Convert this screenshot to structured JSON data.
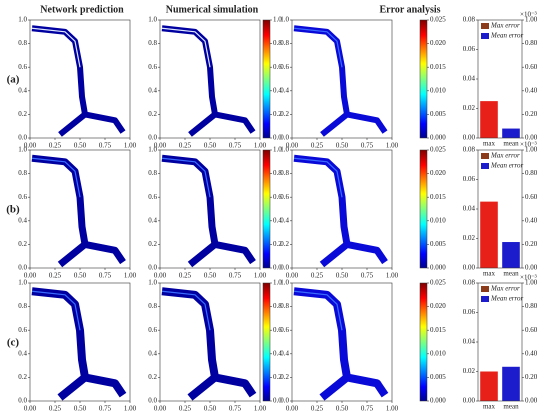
{
  "columns": [
    "Network prediction",
    "Numerical simulation",
    "Error analysis"
  ],
  "rows": [
    "(a)",
    "(b)",
    "(c)"
  ],
  "field_axes": {
    "xlim": [
      0,
      1
    ],
    "ylim": [
      0,
      1
    ],
    "xticks": [
      {
        "value": 0,
        "label": "0.00"
      },
      0.25,
      {
        "value": 0.5,
        "label": "0.50"
      },
      0.75,
      {
        "value": 1,
        "label": "1.00"
      }
    ],
    "yticks": [
      {
        "value": 0,
        "label": "0.0"
      },
      0.2,
      0.4,
      0.6,
      0.8,
      {
        "value": 1,
        "label": "1.0"
      }
    ]
  },
  "colorbars": [
    {
      "lim": [
        0,
        1
      ],
      "ticks": [
        {
          "value": 0,
          "label": "0.0"
        },
        0.2,
        0.4,
        0.6,
        0.8,
        {
          "value": 1,
          "label": "1.0"
        }
      ]
    },
    {
      "lim": [
        0,
        0.025
      ],
      "ticks": [
        {
          "value": 0,
          "label": "0.000"
        },
        0.005,
        {
          "value": 0.01,
          "label": "0.010"
        },
        0.015,
        {
          "value": 0.02,
          "label": "0.020"
        },
        0.025
      ]
    }
  ],
  "chart_data": [
    {
      "type": "bar",
      "categories": [
        "max",
        "mean"
      ],
      "series": [
        {
          "name": "Max error",
          "color": "#e8201a",
          "values": [
            0.025,
            null
          ]
        },
        {
          "name": "Mean error",
          "color": "#1c1ccc",
          "axis": "y2",
          "values": [
            null,
            0.08
          ]
        }
      ],
      "ylim": [
        0,
        0.08
      ],
      "yticks": [
        {
          "value": 0,
          "label": "0.00"
        },
        0.02,
        0.04,
        0.06,
        0.08
      ],
      "y2lim": [
        0,
        1
      ],
      "y2ticks": [
        {
          "value": 0,
          "label": "0.00"
        },
        {
          "value": 0.2,
          "label": "0.20"
        },
        {
          "value": 0.4,
          "label": "0.40"
        },
        {
          "value": 0.6,
          "label": "0.60"
        },
        {
          "value": 0.8,
          "label": "0.80"
        },
        {
          "value": 1,
          "label": "1.00"
        }
      ],
      "y2_scale": "×10⁻³",
      "legend": "upper left"
    },
    {
      "type": "bar",
      "categories": [
        "max",
        "mean"
      ],
      "series": [
        {
          "name": "Max error",
          "color": "#e8201a",
          "values": [
            0.045,
            null
          ]
        },
        {
          "name": "Mean error",
          "color": "#1c1ccc",
          "axis": "y2",
          "values": [
            null,
            0.22
          ]
        }
      ],
      "ylim": [
        0,
        0.08
      ],
      "yticks": [
        {
          "value": 0,
          "label": "0.00"
        },
        0.02,
        0.04,
        0.06,
        0.08
      ],
      "y2lim": [
        0,
        1
      ],
      "y2ticks": [
        {
          "value": 0,
          "label": "0.00"
        },
        {
          "value": 0.2,
          "label": "0.20"
        },
        {
          "value": 0.4,
          "label": "0.40"
        },
        {
          "value": 0.6,
          "label": "0.60"
        },
        {
          "value": 0.8,
          "label": "0.80"
        },
        {
          "value": 1,
          "label": "1.00"
        }
      ],
      "y2_scale": "×10⁻³",
      "legend": "upper left"
    },
    {
      "type": "bar",
      "categories": [
        "max",
        "mean"
      ],
      "series": [
        {
          "name": "Max error",
          "color": "#e8201a",
          "values": [
            0.02,
            null
          ]
        },
        {
          "name": "Mean error",
          "color": "#1c1ccc",
          "axis": "y2",
          "values": [
            null,
            0.29
          ]
        }
      ],
      "ylim": [
        0,
        0.08
      ],
      "yticks": [
        {
          "value": 0,
          "label": "0.00"
        },
        0.02,
        0.04,
        0.06,
        0.08
      ],
      "y2lim": [
        0,
        1
      ],
      "y2ticks": [
        {
          "value": 0,
          "label": "0.00"
        },
        {
          "value": 0.2,
          "label": "0.20"
        },
        {
          "value": 0.4,
          "label": "0.40"
        },
        {
          "value": 0.6,
          "label": "0.60"
        },
        {
          "value": 0.8,
          "label": "0.80"
        },
        {
          "value": 1,
          "label": "1.00"
        }
      ],
      "y2_scale": "×10⁻³",
      "legend": "upper left"
    }
  ]
}
